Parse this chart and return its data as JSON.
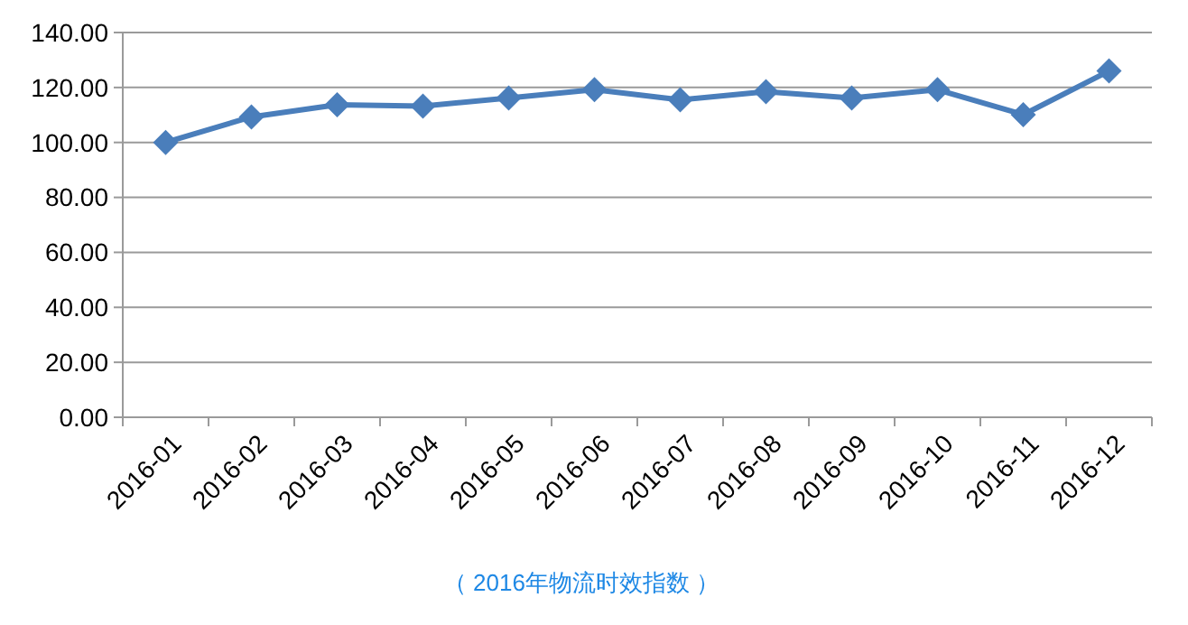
{
  "chart_data": {
    "type": "line",
    "categories": [
      "2016-01",
      "2016-02",
      "2016-03",
      "2016-04",
      "2016-05",
      "2016-06",
      "2016-07",
      "2016-08",
      "2016-09",
      "2016-10",
      "2016-11",
      "2016-12"
    ],
    "series": [
      {
        "color": "#4a7ebb",
        "values": [
          100,
          109.3,
          113.7,
          113.2,
          116.2,
          119.2,
          115.5,
          118.5,
          116.2,
          119.2,
          110.1,
          126
        ]
      }
    ],
    "ylim": [
      0,
      140
    ],
    "yticks": [
      {
        "value": 0,
        "label": "0.00"
      },
      {
        "value": 20,
        "label": "20.00"
      },
      {
        "value": 40,
        "label": "40.00"
      },
      {
        "value": 60,
        "label": "60.00"
      },
      {
        "value": 80,
        "label": "80.00"
      },
      {
        "value": 100,
        "label": "100.00"
      },
      {
        "value": 120,
        "label": "120.00"
      },
      {
        "value": 140,
        "label": "140.00"
      }
    ],
    "grid": "y",
    "marker": "diamond",
    "line_style": "solid",
    "annotations": [
      "（ 2016年物流时效指数 ）"
    ]
  }
}
